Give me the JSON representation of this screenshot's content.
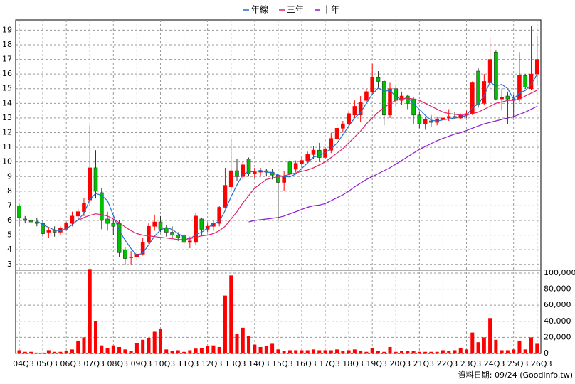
{
  "chart_data": {
    "type": "candlestick",
    "legend_position": "top",
    "grid": true,
    "note": "資料日期: 09/24 (Goodinfo.tw)",
    "up_color": "#ff0000",
    "down_color": "#00c000",
    "volume_color": "#ff0000",
    "categories": [
      "04Q3",
      null,
      null,
      null,
      "05Q3",
      null,
      null,
      null,
      "06Q3",
      null,
      null,
      null,
      "07Q3",
      null,
      null,
      null,
      "08Q3",
      null,
      null,
      null,
      "09Q3",
      null,
      null,
      null,
      "10Q3",
      null,
      null,
      null,
      "11Q3",
      null,
      null,
      null,
      "12Q3",
      null,
      null,
      null,
      "13Q3",
      null,
      null,
      null,
      "14Q3",
      null,
      null,
      null,
      "15Q3",
      null,
      null,
      null,
      "16Q3",
      null,
      null,
      null,
      "17Q3",
      null,
      null,
      null,
      "18Q3",
      null,
      null,
      null,
      "19Q3",
      null,
      null,
      null,
      "20Q3",
      null,
      null,
      null,
      "21Q3",
      null,
      null,
      null,
      "22Q3",
      null,
      null,
      null,
      "23Q3",
      null,
      null,
      null,
      "24Q3",
      null,
      null,
      null,
      "25Q3",
      null,
      null,
      null,
      "26Q3"
    ],
    "open": [
      7.0,
      6.1,
      6.0,
      5.9,
      5.8,
      5.2,
      5.3,
      5.2,
      5.4,
      5.8,
      6.3,
      6.6,
      7.4,
      9.6,
      7.9,
      6.1,
      5.8,
      5.8,
      4.0,
      3.5,
      3.5,
      3.7,
      4.5,
      5.6,
      5.9,
      5.5,
      5.2,
      5.0,
      5.0,
      4.5,
      4.5,
      6.1,
      5.4,
      5.6,
      5.8,
      6.9,
      8.3,
      9.4,
      9.0,
      10.2,
      9.2,
      9.3,
      9.4,
      9.3,
      9.1,
      8.6,
      10.0,
      9.5,
      9.9,
      10.1,
      10.5,
      10.8,
      10.3,
      10.8,
      11.6,
      12.3,
      12.6,
      13.2,
      13.2,
      14.2,
      14.8,
      15.8,
      15.5,
      13.2,
      15.0,
      14.2,
      14.5,
      14.3,
      13.2,
      12.6,
      12.8,
      12.7,
      12.9,
      13.0,
      13.1,
      13.0,
      13.2,
      13.3,
      16.2,
      14.0,
      15.4,
      17.5,
      14.3,
      14.5,
      14.3,
      14.3,
      15.9,
      15.0,
      16.0
    ],
    "high": [
      7.1,
      6.3,
      6.2,
      6.2,
      6.0,
      5.5,
      5.6,
      5.6,
      5.9,
      6.6,
      6.8,
      7.5,
      12.5,
      10.8,
      8.2,
      6.6,
      6.1,
      6.0,
      4.2,
      3.9,
      3.8,
      4.8,
      5.8,
      6.4,
      6.3,
      5.7,
      5.6,
      5.2,
      5.1,
      4.9,
      6.5,
      6.2,
      5.8,
      6.0,
      7.0,
      9.6,
      11.6,
      10.2,
      10.0,
      10.3,
      9.6,
      9.6,
      9.5,
      9.5,
      9.2,
      9.4,
      10.2,
      10.1,
      10.4,
      10.7,
      11.1,
      11.3,
      11.0,
      12.0,
      12.6,
      12.8,
      13.4,
      14.2,
      14.5,
      15.0,
      16.7,
      16.2,
      15.6,
      15.4,
      15.2,
      14.8,
      14.6,
      14.4,
      13.4,
      13.1,
      13.2,
      13.1,
      13.2,
      13.6,
      13.4,
      13.3,
      13.5,
      15.5,
      16.4,
      16.0,
      18.5,
      17.6,
      15.0,
      14.8,
      14.6,
      17.5,
      16.0,
      19.3,
      18.6
    ],
    "low": [
      5.6,
      5.8,
      5.7,
      5.6,
      4.9,
      4.8,
      4.9,
      5.0,
      5.3,
      5.6,
      6.0,
      6.3,
      7.0,
      7.5,
      5.4,
      5.3,
      5.0,
      3.5,
      3.0,
      3.0,
      3.3,
      3.6,
      4.4,
      5.3,
      5.2,
      4.9,
      4.8,
      4.6,
      4.3,
      4.1,
      4.3,
      5.0,
      5.2,
      5.3,
      5.6,
      6.8,
      8.0,
      8.7,
      8.8,
      9.0,
      8.9,
      9.0,
      9.0,
      8.8,
      6.0,
      8.0,
      8.9,
      9.3,
      9.6,
      9.9,
      10.2,
      10.0,
      10.2,
      10.6,
      11.4,
      12.0,
      12.3,
      13.0,
      12.7,
      14.0,
      14.6,
      15.0,
      12.5,
      13.0,
      13.8,
      13.9,
      13.6,
      12.6,
      12.3,
      12.2,
      12.4,
      12.5,
      12.7,
      12.8,
      12.9,
      12.9,
      13.0,
      13.2,
      13.7,
      13.9,
      15.0,
      14.2,
      13.5,
      12.6,
      13.0,
      14.1,
      15.0,
      14.9,
      15.2
    ],
    "close": [
      6.2,
      6.0,
      5.9,
      5.8,
      5.1,
      5.3,
      5.2,
      5.5,
      5.8,
      6.3,
      6.6,
      7.2,
      9.6,
      8.0,
      6.0,
      5.8,
      5.6,
      3.8,
      3.4,
      3.5,
      3.7,
      4.5,
      5.6,
      5.9,
      5.4,
      5.2,
      5.0,
      4.8,
      4.5,
      4.6,
      6.3,
      5.4,
      5.6,
      5.8,
      6.9,
      8.4,
      9.4,
      9.0,
      9.8,
      9.2,
      9.3,
      9.4,
      9.3,
      9.1,
      8.6,
      9.0,
      9.2,
      9.9,
      10.1,
      10.5,
      10.8,
      10.3,
      10.9,
      11.6,
      12.3,
      12.6,
      13.3,
      13.8,
      14.1,
      14.8,
      15.8,
      15.5,
      13.2,
      15.0,
      14.2,
      14.5,
      14.0,
      13.2,
      12.6,
      12.9,
      12.7,
      12.9,
      13.0,
      13.1,
      13.0,
      13.2,
      13.3,
      15.4,
      13.9,
      15.5,
      17.0,
      14.3,
      14.4,
      14.3,
      14.2,
      15.9,
      15.1,
      16.0,
      17.0
    ],
    "volume": [
      4000,
      2000,
      2000,
      1000,
      1000,
      4000,
      2000,
      2000,
      3000,
      5000,
      16000,
      20000,
      105000,
      40000,
      10000,
      7000,
      10000,
      8000,
      5000,
      3000,
      13000,
      17000,
      19000,
      27000,
      31000,
      5000,
      3000,
      4000,
      2000,
      4000,
      6000,
      7000,
      9000,
      10000,
      8000,
      72000,
      97000,
      24000,
      32000,
      22000,
      11000,
      8000,
      9000,
      12000,
      5000,
      3000,
      4000,
      4000,
      4000,
      4000,
      5000,
      4000,
      4000,
      4000,
      5000,
      3000,
      4000,
      5000,
      3000,
      2000,
      7000,
      3000,
      2000,
      8000,
      2000,
      3000,
      3000,
      3000,
      2000,
      2000,
      2000,
      2000,
      4000,
      3000,
      4000,
      7000,
      5000,
      26000,
      14000,
      20000,
      44000,
      17000,
      4000,
      4000,
      5000,
      16000,
      5000,
      20000,
      12000
    ],
    "series": [
      {
        "name": "年線",
        "color": "#1f6fd0",
        "values": [
          null,
          null,
          null,
          5.98,
          5.7,
          5.53,
          5.35,
          5.28,
          5.45,
          5.7,
          6.05,
          6.48,
          7.43,
          7.85,
          7.7,
          7.35,
          6.35,
          5.3,
          4.65,
          4.08,
          3.6,
          3.78,
          4.33,
          4.93,
          5.35,
          5.53,
          5.38,
          5.1,
          4.88,
          4.73,
          5.05,
          5.2,
          5.48,
          5.78,
          5.93,
          6.68,
          7.63,
          8.43,
          9.15,
          9.35,
          9.33,
          9.43,
          9.3,
          9.28,
          9.1,
          9.0,
          8.98,
          9.18,
          9.55,
          9.93,
          10.33,
          10.43,
          10.63,
          10.9,
          11.28,
          11.85,
          12.45,
          13.0,
          13.38,
          14.0,
          14.63,
          15.05,
          14.83,
          14.88,
          14.48,
          14.23,
          14.43,
          13.98,
          13.58,
          13.18,
          12.85,
          12.78,
          12.88,
          12.93,
          13.0,
          13.08,
          13.15,
          13.73,
          13.95,
          14.53,
          15.45,
          15.18,
          15.3,
          15.0,
          14.3,
          14.7,
          14.88,
          15.3,
          16.0
        ]
      },
      {
        "name": "三年",
        "color": "#e0206a",
        "values": [
          null,
          null,
          null,
          null,
          null,
          null,
          null,
          null,
          null,
          null,
          6.0,
          6.2,
          6.35,
          6.45,
          6.4,
          6.3,
          6.1,
          5.85,
          5.55,
          5.3,
          5.1,
          5.0,
          4.95,
          4.9,
          4.85,
          4.8,
          4.75,
          4.7,
          4.7,
          4.75,
          4.85,
          4.95,
          5.0,
          5.1,
          5.3,
          5.6,
          6.1,
          6.6,
          7.2,
          7.7,
          8.2,
          8.5,
          8.8,
          8.9,
          9.0,
          9.05,
          9.15,
          9.25,
          9.35,
          9.45,
          9.6,
          9.8,
          10.0,
          10.3,
          10.6,
          10.9,
          11.3,
          11.7,
          12.1,
          12.6,
          13.0,
          13.4,
          13.7,
          14.0,
          14.2,
          14.3,
          14.35,
          14.3,
          14.2,
          14.0,
          13.8,
          13.6,
          13.4,
          13.3,
          13.25,
          13.2,
          13.2,
          13.3,
          13.4,
          13.6,
          13.8,
          14.0,
          14.1,
          14.2,
          14.2,
          14.3,
          14.5,
          14.7,
          14.9
        ]
      },
      {
        "name": "十年",
        "color": "#8a1ad0",
        "values": [
          null,
          null,
          null,
          null,
          null,
          null,
          null,
          null,
          null,
          null,
          null,
          null,
          null,
          null,
          null,
          null,
          null,
          null,
          null,
          null,
          null,
          null,
          null,
          null,
          null,
          null,
          null,
          null,
          null,
          null,
          null,
          null,
          null,
          null,
          null,
          null,
          null,
          null,
          null,
          5.9,
          6.0,
          6.05,
          6.1,
          6.15,
          6.2,
          6.3,
          6.45,
          6.6,
          6.75,
          6.9,
          7.0,
          7.05,
          7.15,
          7.35,
          7.55,
          7.75,
          8.0,
          8.3,
          8.55,
          8.8,
          9.0,
          9.2,
          9.4,
          9.6,
          9.85,
          10.1,
          10.35,
          10.6,
          10.85,
          11.05,
          11.25,
          11.45,
          11.6,
          11.75,
          11.9,
          12.0,
          12.15,
          12.3,
          12.45,
          12.6,
          12.7,
          12.8,
          12.9,
          13.0,
          13.1,
          13.25,
          13.4,
          13.6,
          13.8
        ]
      }
    ],
    "ylim": [
      2.6,
      19.7
    ],
    "yticks": [
      3,
      4,
      5,
      6,
      7,
      8,
      9,
      10,
      11,
      12,
      13,
      14,
      15,
      16,
      17,
      18,
      19
    ],
    "y2lim": [
      0,
      103500
    ],
    "y2ticks": [
      0,
      {
        "value": 20000,
        "label": "20,000"
      },
      {
        "value": 40000,
        "label": "40,000"
      },
      {
        "value": 60000,
        "label": "60,000"
      },
      {
        "value": 80000,
        "label": "80,000"
      },
      {
        "value": 100000,
        "label": "100,000"
      }
    ]
  }
}
